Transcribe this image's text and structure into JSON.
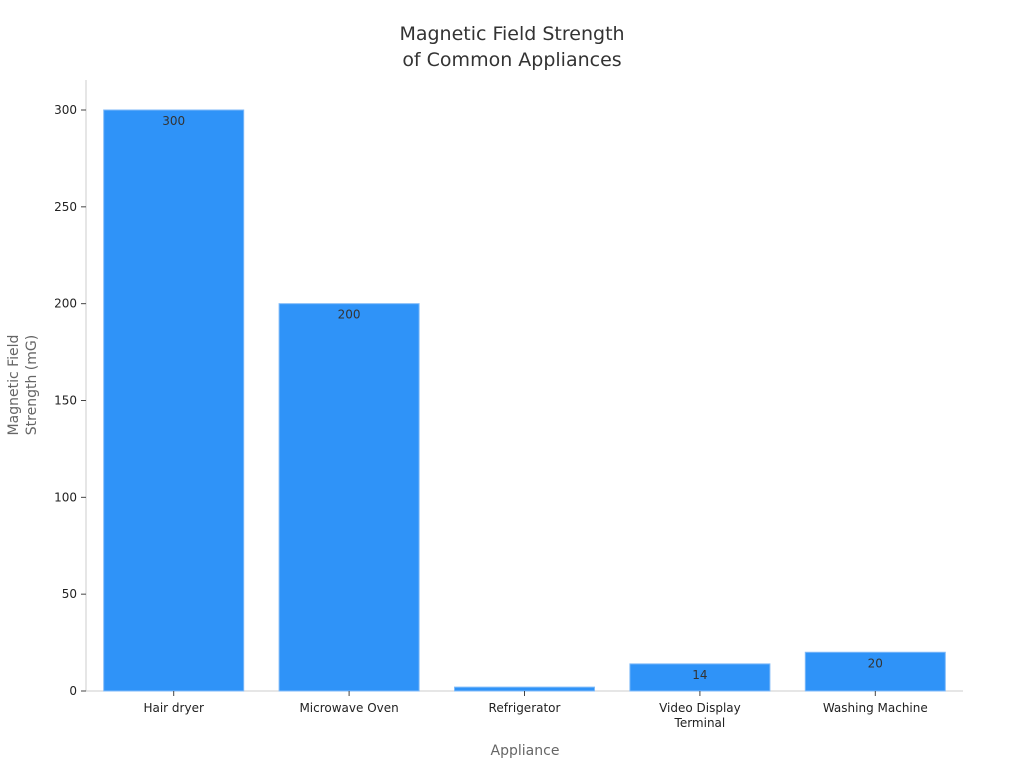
{
  "chart_data": {
    "type": "bar",
    "title": [
      "Magnetic Field Strength",
      "of Common Appliances"
    ],
    "xlabel": "Appliance",
    "ylabel": [
      "Magnetic Field",
      "Strength (mG)"
    ],
    "categories": [
      [
        "Hair dryer"
      ],
      [
        "Microwave Oven"
      ],
      [
        "Refrigerator"
      ],
      [
        "Video Display",
        "Terminal"
      ],
      [
        "Washing Machine"
      ]
    ],
    "values": [
      300,
      200,
      2,
      14,
      20
    ],
    "ylim": [
      0,
      315
    ],
    "yticks": [
      0,
      50,
      100,
      150,
      200,
      250,
      300
    ],
    "grid": false,
    "bar_color": "#2f93f8"
  }
}
